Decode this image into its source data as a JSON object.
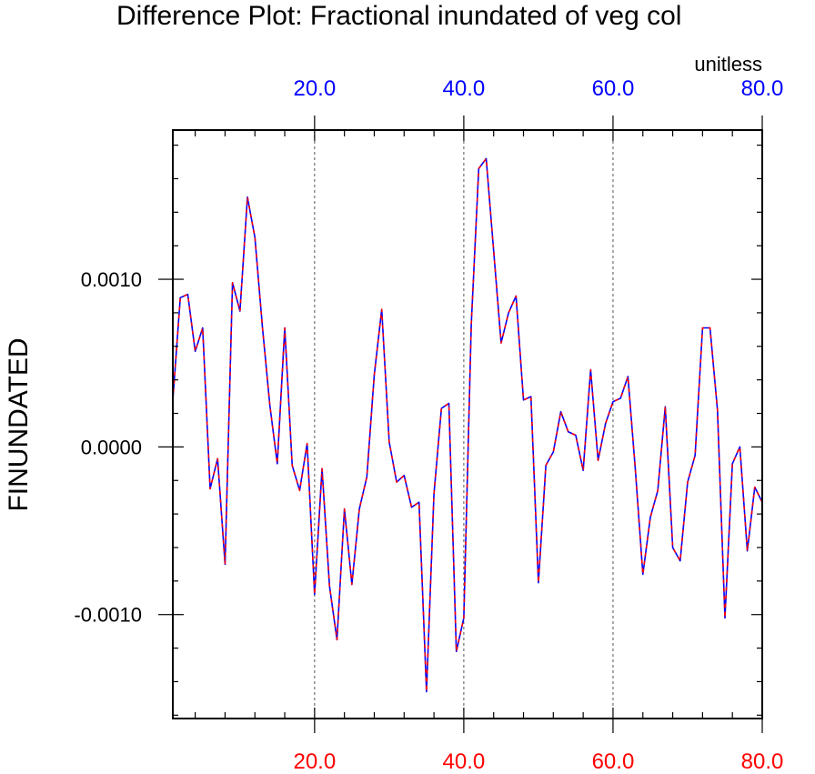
{
  "chart_data": {
    "type": "line",
    "title": "Difference Plot: Fractional inundated of veg col",
    "units": "unitless",
    "ylabel": "FINUNDATED",
    "xlim": [
      1,
      80
    ],
    "ylim": [
      -0.00162,
      0.00189
    ],
    "x_ticks": [
      20,
      40,
      60,
      80
    ],
    "x_tick_labels_top": [
      "20.0",
      "40.0",
      "60.0",
      "80.0"
    ],
    "x_tick_labels_bottom": [
      "20.0",
      "40.0",
      "60.0",
      "80.0"
    ],
    "y_ticks": [
      0.001,
      0.0,
      -0.001
    ],
    "y_tick_labels": [
      "0.0010",
      "0.0000",
      "-0.0010"
    ],
    "grid_x": [
      20,
      40,
      60
    ],
    "colors": {
      "top_axis": "#0000ff",
      "bottom_axis": "#ff0000",
      "series_a": "#0000ff",
      "series_b": "#ff0000",
      "grid": "#555555"
    },
    "series": [
      {
        "name": "solid",
        "x": [
          1,
          2,
          3,
          4,
          5,
          6,
          7,
          8,
          9,
          10,
          11,
          12,
          13,
          14,
          15,
          16,
          17,
          18,
          19,
          20,
          21,
          22,
          23,
          24,
          25,
          26,
          27,
          28,
          29,
          30,
          31,
          32,
          33,
          34,
          35,
          36,
          37,
          38,
          39,
          40,
          41,
          42,
          43,
          44,
          45,
          46,
          47,
          48,
          49,
          50,
          51,
          52,
          53,
          54,
          55,
          56,
          57,
          58,
          59,
          60,
          61,
          62,
          63,
          64,
          65,
          66,
          67,
          68,
          69,
          70,
          71,
          72,
          73,
          74,
          75,
          76,
          77,
          78,
          79,
          80
        ],
        "values": [
          0.00028,
          0.00089,
          0.00091,
          0.00057,
          0.00071,
          -0.00025,
          -7e-05,
          -0.0007,
          0.00098,
          0.00081,
          0.00149,
          0.00125,
          0.00072,
          0.00025,
          -0.0001,
          0.00071,
          -0.00011,
          -0.00026,
          2e-05,
          -0.00088,
          -0.00013,
          -0.00083,
          -0.00115,
          -0.00037,
          -0.00082,
          -0.00037,
          -0.00018,
          0.00043,
          0.00082,
          3e-05,
          -0.00021,
          -0.00017,
          -0.00036,
          -0.00033,
          -0.00146,
          -0.00028,
          0.00023,
          0.00026,
          -0.00122,
          -0.00102,
          0.00073,
          0.00166,
          0.00172,
          0.00117,
          0.00062,
          0.0008,
          0.0009,
          0.00028,
          0.0003,
          -0.00081,
          -0.00011,
          -3e-05,
          0.00021,
          9e-05,
          7e-05,
          -0.00014,
          0.00046,
          -8e-05,
          0.00014,
          0.00027,
          0.00029,
          0.00042,
          -0.00014,
          -0.00076,
          -0.00042,
          -0.00026,
          0.00024,
          -0.0006,
          -0.00068,
          -0.00021,
          -5e-05,
          0.00071,
          0.00071,
          0.00022,
          -0.00102,
          -0.0001,
          0.0,
          -0.00062,
          -0.00024,
          -0.00033
        ]
      },
      {
        "name": "dashed",
        "x": [
          1,
          2,
          3,
          4,
          5,
          6,
          7,
          8,
          9,
          10,
          11,
          12,
          13,
          14,
          15,
          16,
          17,
          18,
          19,
          20,
          21,
          22,
          23,
          24,
          25,
          26,
          27,
          28,
          29,
          30,
          31,
          32,
          33,
          34,
          35,
          36,
          37,
          38,
          39,
          40,
          41,
          42,
          43,
          44,
          45,
          46,
          47,
          48,
          49,
          50,
          51,
          52,
          53,
          54,
          55,
          56,
          57,
          58,
          59,
          60,
          61,
          62,
          63,
          64,
          65,
          66,
          67,
          68,
          69,
          70,
          71,
          72,
          73,
          74,
          75,
          76,
          77,
          78,
          79,
          80
        ],
        "values": [
          0.00028,
          0.00089,
          0.00091,
          0.00057,
          0.00071,
          -0.00025,
          -7e-05,
          -0.0007,
          0.00098,
          0.00081,
          0.00149,
          0.00125,
          0.00072,
          0.00025,
          -0.0001,
          0.00071,
          -0.00011,
          -0.00026,
          2e-05,
          -0.00088,
          -0.00013,
          -0.00083,
          -0.00115,
          -0.00037,
          -0.00082,
          -0.00037,
          -0.00018,
          0.00043,
          0.00082,
          3e-05,
          -0.00021,
          -0.00017,
          -0.00036,
          -0.00033,
          -0.00146,
          -0.00028,
          0.00023,
          0.00026,
          -0.00122,
          -0.00102,
          0.00073,
          0.00166,
          0.00172,
          0.00117,
          0.00062,
          0.0008,
          0.0009,
          0.00028,
          0.0003,
          -0.00081,
          -0.00011,
          -3e-05,
          0.00021,
          9e-05,
          7e-05,
          -0.00014,
          0.00046,
          -8e-05,
          0.00014,
          0.00027,
          0.00029,
          0.00042,
          -0.00014,
          -0.00076,
          -0.00042,
          -0.00026,
          0.00024,
          -0.0006,
          -0.00068,
          -0.00021,
          -5e-05,
          0.00071,
          0.00071,
          0.00022,
          -0.00102,
          -0.0001,
          0.0,
          -0.00062,
          -0.00024,
          -0.00033
        ]
      }
    ]
  }
}
